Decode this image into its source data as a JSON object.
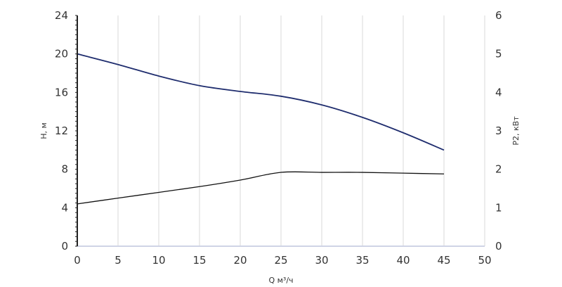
{
  "chart_data": {
    "type": "line",
    "title": "",
    "xlabel": "Q м³/ч",
    "ylabel_left": "H, м",
    "ylabel_right": "P2, кВт",
    "xlim": [
      0,
      50
    ],
    "ylim_left": [
      0,
      24
    ],
    "ylim_right": [
      0,
      6
    ],
    "x_ticks": [
      "0",
      "5",
      "10",
      "15",
      "20",
      "25",
      "30",
      "35",
      "40",
      "45",
      "50"
    ],
    "y_left_ticks": [
      "0",
      "4",
      "8",
      "12",
      "16",
      "20",
      "24"
    ],
    "y_right_ticks": [
      "0",
      "1",
      "2",
      "3",
      "4",
      "5",
      "6"
    ],
    "grid": "vertical",
    "colors": {
      "head": "#1f2d6e",
      "power": "#111111",
      "axis": "#333333",
      "grid": "#d9d9d9"
    },
    "series": [
      {
        "axis": "left",
        "color": "#1f2d6e",
        "x": [
          0,
          5,
          10,
          15,
          20,
          25,
          30,
          35,
          40,
          45
        ],
        "y": [
          20.0,
          18.9,
          17.7,
          16.7,
          16.1,
          15.6,
          14.7,
          13.4,
          11.8,
          10.0
        ]
      },
      {
        "axis": "right",
        "color": "#111111",
        "x": [
          0,
          5,
          10,
          15,
          20,
          25,
          30,
          35,
          40,
          45
        ],
        "y": [
          1.1,
          1.25,
          1.4,
          1.55,
          1.72,
          1.92,
          1.92,
          1.92,
          1.9,
          1.88
        ]
      }
    ]
  }
}
